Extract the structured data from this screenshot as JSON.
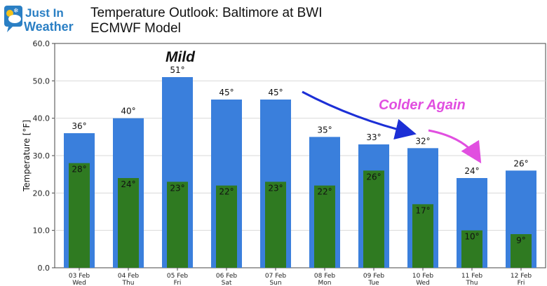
{
  "logo": {
    "line1": "Just In",
    "line2": "Weather",
    "colors": {
      "text": "#2a7fc4",
      "badge": "#2a7fc4"
    },
    "icon": "snow-sun-cloud-icon"
  },
  "header": {
    "title_line1": "Temperature Outlook: Baltimore at BWI",
    "title_line2": "ECMWF Model"
  },
  "annotations": {
    "mild": "Mild",
    "colder": "Colder Again"
  },
  "colors": {
    "high_bar": "#3a7fdc",
    "low_bar": "#2f7a21",
    "arrow_blue": "#1c2fd6",
    "arrow_magenta": "#e14fe0",
    "grid": "#d9d9d9"
  },
  "chart_data": {
    "type": "bar",
    "ylabel": "Temperature [°F]",
    "xlabel": "",
    "ylim": [
      0,
      60
    ],
    "yticks": [
      "0.0",
      "10.0",
      "20.0",
      "30.0",
      "40.0",
      "50.0",
      "60.0"
    ],
    "grid": true,
    "categories": [
      "03 Feb",
      "04 Feb",
      "05 Feb",
      "06 Feb",
      "07 Feb",
      "08 Feb",
      "09 Feb",
      "10 Feb",
      "11 Feb",
      "12 Feb"
    ],
    "weekdays": [
      "Wed",
      "Thu",
      "Fri",
      "Sat",
      "Sun",
      "Mon",
      "Tue",
      "Wed",
      "Thu",
      "Fri"
    ],
    "series": [
      {
        "values": [
          36,
          40,
          51,
          45,
          45,
          35,
          33,
          32,
          24,
          26
        ],
        "labels": [
          "36°",
          "40°",
          "51°",
          "45°",
          "45°",
          "35°",
          "33°",
          "32°",
          "24°",
          "26°"
        ]
      },
      {
        "values": [
          28,
          24,
          23,
          22,
          23,
          22,
          26,
          17,
          10,
          9
        ],
        "labels": [
          "28°",
          "24°",
          "23°",
          "22°",
          "23°",
          "22°",
          "26°",
          "17°",
          "10°",
          "9°"
        ]
      }
    ]
  }
}
